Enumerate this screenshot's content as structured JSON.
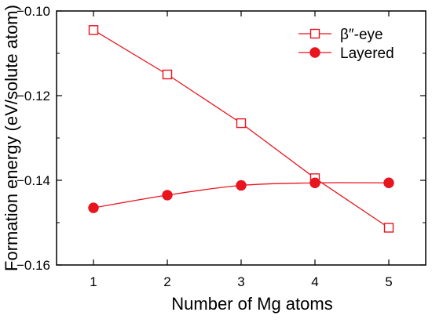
{
  "chart_data": {
    "type": "line",
    "xlabel": "Number of Mg atoms",
    "ylabel": "Formation energy (eV/solute atom)",
    "xlim": [
      0.5,
      5.5
    ],
    "ylim": [
      -0.16,
      -0.1
    ],
    "x_ticks": [
      1,
      2,
      3,
      4,
      5
    ],
    "y_ticks": [
      -0.16,
      -0.14,
      -0.12,
      -0.1
    ],
    "x_tick_labels": [
      "1",
      "2",
      "3",
      "4",
      "5"
    ],
    "y_tick_labels": [
      "−0.16",
      "−0.14",
      "−0.12",
      "−0.10"
    ],
    "grid": false,
    "legend_position": "top-right",
    "x": [
      1,
      2,
      3,
      4,
      5
    ],
    "series": [
      {
        "name": "β″-eye",
        "marker": "open-square",
        "color": "#e8141e",
        "values": [
          -0.1045,
          -0.115,
          -0.1265,
          -0.1395,
          -0.1512
        ]
      },
      {
        "name": "Layered",
        "marker": "filled-circle",
        "color": "#e8141e",
        "values": [
          -0.1465,
          -0.1435,
          -0.1412,
          -0.1406,
          -0.1406
        ]
      }
    ]
  }
}
